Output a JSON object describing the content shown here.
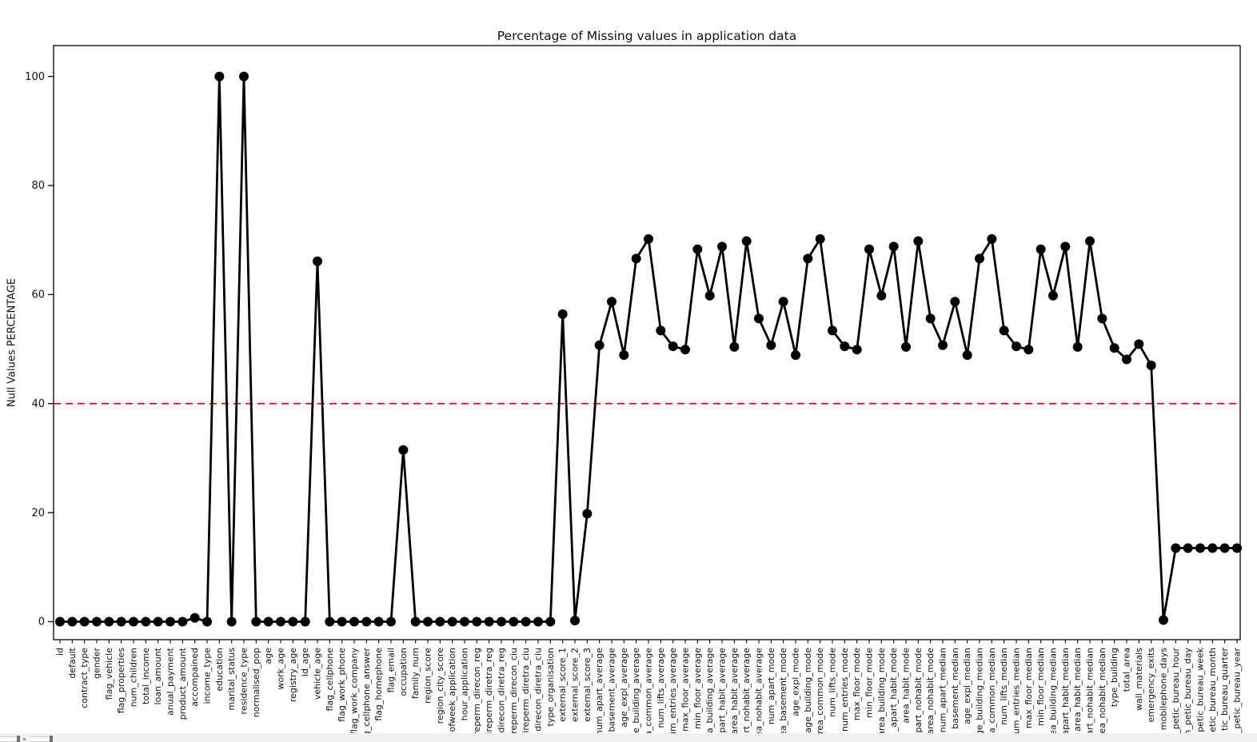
{
  "figure": {
    "title": "Percentage of Missing values in application data",
    "ylabel": "Null Values PERCENTAGE"
  },
  "chart_data": {
    "type": "line",
    "title": "Percentage of Missing values in application data",
    "xlabel": "",
    "ylabel": "Null Values PERCENTAGE",
    "yticks": [
      0,
      20,
      40,
      60,
      80,
      100
    ],
    "ylim": [
      -3.5,
      105.5
    ],
    "grid": false,
    "legend": "none",
    "x_tick_rotation": 90,
    "line_color": "#000000",
    "marker": "circle",
    "threshold_line": {
      "value": 40,
      "color": "#ff0000",
      "style": "dashed"
    },
    "categories": [
      "id",
      "default",
      "contract_type",
      "gender",
      "flag_vehicle",
      "flag_properties",
      "num_children",
      "total_income",
      "loan_amount",
      "anual_payment",
      "product_amount",
      "accompained",
      "income_type",
      "education",
      "marital_status",
      "residence_type",
      "normalised_pop",
      "age",
      "work_age",
      "registry_age",
      "id_age",
      "vehicle_age",
      "flag_cellphone",
      "flag_work_phone",
      "flag_work_company",
      "g_cellphone_answer",
      "flag_homephone",
      "flag_email",
      "occupation",
      "family_num",
      "region_score",
      "region_city_score",
      "ofweek_application",
      "hour_application",
      "reperm_direcon_reg",
      "ireperm_diretra_reg",
      "direcon_diretra_reg",
      "reperm_direcon_ciu",
      "ireperm_diretra_ciu",
      "direcon_diretra_ciu",
      "type_organisation",
      "external_score_1",
      "external_score_2",
      "external_score_3",
      "num_apart_average",
      "basement_average",
      "age_expl_average",
      "e_building_average",
      "a_common_average",
      "num_lifts_average",
      "um_entries_average",
      "max_floor_average",
      "min_floor_average",
      "a_building_average",
      "part_habit_average",
      "area_habit_average",
      "rt_nohabit_average",
      "ea_nohabit_average",
      "num_apart_mode",
      "ea_basement_mode",
      "age_expl_mode",
      "age_building_mode",
      "rea_common_mode",
      "num_lifts_mode",
      "num_entries_mode",
      "max_floor_mode",
      "min_floor_mode",
      "area_building_mode",
      "_apart_habit_mode",
      "area_habit_mode",
      "part_nohabit_mode",
      "area_nohabit_mode",
      "num_apart_median",
      "basement_median",
      "age_expl_median",
      "ge_building_median",
      "a_common_median",
      "num_lifts_median",
      "um_entries_median",
      "max_floor_median",
      "min_floor_median",
      "ea_building_median",
      "apart_habit_median",
      "area_habit_median",
      "art_nohabit_median",
      "ea_nohabit_median",
      "type_building",
      "total_area",
      "wall_materials",
      "emergency_exits",
      "mobilephone_days",
      "_petic_bureau_hour",
      "n_petic_bureau_day",
      "petic_bureau_week",
      "etic_bureau_month",
      "tic_bureau_quarter",
      "_petic_bureau_year"
    ],
    "values": [
      0,
      0,
      0,
      0,
      0,
      0,
      0,
      0,
      0,
      0,
      0,
      0.7,
      0,
      100,
      0,
      100,
      0,
      0,
      0,
      0,
      0,
      66.1,
      0,
      0,
      0,
      0,
      0,
      0,
      31.5,
      0,
      0,
      0,
      0,
      0,
      0,
      0,
      0,
      0,
      0,
      0,
      0,
      56.4,
      0.2,
      19.8,
      50.7,
      58.7,
      48.9,
      66.6,
      70.2,
      53.4,
      50.5,
      49.9,
      68.3,
      59.8,
      68.8,
      50.4,
      69.8,
      55.6,
      50.7,
      58.7,
      48.9,
      66.6,
      70.2,
      53.4,
      50.5,
      49.9,
      68.3,
      59.8,
      68.8,
      50.4,
      69.8,
      55.6,
      50.7,
      58.7,
      48.9,
      66.6,
      70.2,
      53.4,
      50.5,
      49.9,
      68.3,
      59.8,
      68.8,
      50.4,
      69.8,
      55.6,
      50.2,
      48.1,
      50.9,
      47.0,
      0.3,
      13.5,
      13.5,
      13.5,
      13.5,
      13.5,
      13.5
    ]
  }
}
